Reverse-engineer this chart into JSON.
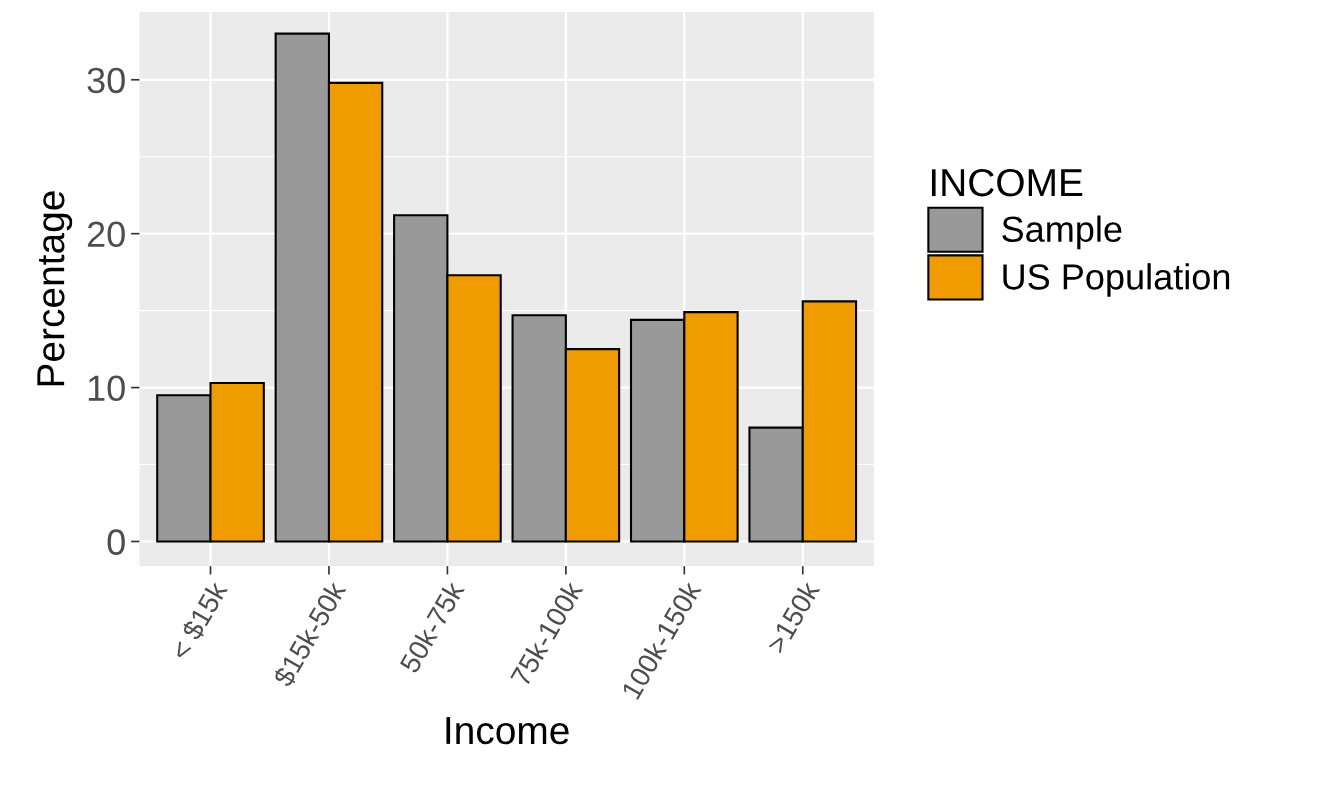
{
  "chart_data": {
    "type": "bar",
    "xlabel": "Income",
    "ylabel": "Percentage",
    "legend_title": "INCOME",
    "categories": [
      "< $15k",
      "$15k-50k",
      "50k-75k",
      "75k-100k",
      "100k-150k",
      ">150k"
    ],
    "series": [
      {
        "name": "Sample",
        "color": "#999999",
        "values": [
          9.5,
          33.0,
          21.2,
          14.7,
          14.4,
          7.4
        ]
      },
      {
        "name": "US Population",
        "color": "#f09c00",
        "values": [
          10.3,
          29.8,
          17.3,
          12.5,
          14.9,
          15.6
        ]
      }
    ],
    "ylim": [
      -1.6,
      34.4
    ],
    "yticks": [
      0,
      {
        "value": 5,
        "label": null
      },
      10,
      {
        "value": 15,
        "label": null
      },
      20,
      {
        "value": 25,
        "label": null
      },
      30
    ],
    "grid": true,
    "legend": "right"
  }
}
